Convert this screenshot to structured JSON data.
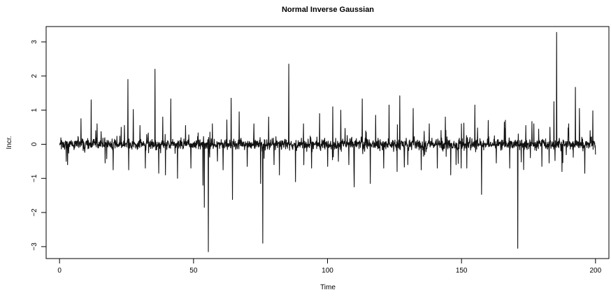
{
  "chart_data": {
    "type": "line",
    "title": "Normal Inverse Gaussian",
    "xlabel": "Time",
    "ylabel": "Incr.",
    "xlim": [
      -5,
      205
    ],
    "ylim": [
      -3.35,
      3.45
    ],
    "xticks": [
      0,
      50,
      100,
      150,
      200
    ],
    "yticks": [
      -3,
      -2,
      -1,
      0,
      1,
      2,
      3
    ],
    "grid": false,
    "legend": "none",
    "series": [
      {
        "n_points": 2000,
        "x_start": 0,
        "x_end": 200,
        "baseline_noise_sd": 0.08,
        "seed": 7,
        "spikes": [
          [
            2.5,
            -0.5
          ],
          [
            3.0,
            -0.6
          ],
          [
            8.0,
            0.75
          ],
          [
            11.8,
            1.3
          ],
          [
            14.0,
            0.6
          ],
          [
            17.0,
            -0.55
          ],
          [
            20.0,
            -0.75
          ],
          [
            23.0,
            0.5
          ],
          [
            25.5,
            1.9
          ],
          [
            25.8,
            -0.75
          ],
          [
            27.5,
            1.02
          ],
          [
            30.0,
            0.55
          ],
          [
            32.0,
            -0.7
          ],
          [
            35.6,
            2.2
          ],
          [
            37.0,
            -0.85
          ],
          [
            38.5,
            0.8
          ],
          [
            39.5,
            -0.9
          ],
          [
            41.5,
            1.33
          ],
          [
            44.0,
            -1.0
          ],
          [
            47.0,
            0.55
          ],
          [
            49.0,
            -0.7
          ],
          [
            53.5,
            -1.2
          ],
          [
            54.0,
            -1.85
          ],
          [
            55.5,
            -3.15
          ],
          [
            57.0,
            0.6
          ],
          [
            61.0,
            -0.75
          ],
          [
            64.0,
            1.35
          ],
          [
            64.5,
            -1.62
          ],
          [
            67.0,
            0.95
          ],
          [
            70.0,
            -0.65
          ],
          [
            72.5,
            0.6
          ],
          [
            75.0,
            -1.15
          ],
          [
            75.8,
            -2.9
          ],
          [
            78.0,
            0.8
          ],
          [
            80.0,
            -0.6
          ],
          [
            82.0,
            -0.9
          ],
          [
            85.5,
            2.35
          ],
          [
            88.0,
            -1.1
          ],
          [
            91.0,
            0.6
          ],
          [
            94.0,
            -0.7
          ],
          [
            97.0,
            0.9
          ],
          [
            100.0,
            -0.65
          ],
          [
            102.0,
            1.1
          ],
          [
            105.0,
            1.0
          ],
          [
            108.0,
            -0.6
          ],
          [
            110.0,
            -1.25
          ],
          [
            113.0,
            1.33
          ],
          [
            116.0,
            -1.15
          ],
          [
            118.0,
            0.85
          ],
          [
            121.0,
            -0.7
          ],
          [
            123.0,
            1.15
          ],
          [
            126.0,
            -0.8
          ],
          [
            127.0,
            1.42
          ],
          [
            130.0,
            -0.6
          ],
          [
            132.0,
            1.05
          ],
          [
            135.0,
            -0.75
          ],
          [
            138.0,
            0.6
          ],
          [
            141.0,
            -0.7
          ],
          [
            144.0,
            0.8
          ],
          [
            146.0,
            -0.9
          ],
          [
            148.0,
            -0.6
          ],
          [
            150.0,
            0.6
          ],
          [
            152.0,
            -0.7
          ],
          [
            155.0,
            1.15
          ],
          [
            157.5,
            -1.47
          ],
          [
            160.0,
            0.7
          ],
          [
            163.0,
            -0.55
          ],
          [
            166.0,
            0.65
          ],
          [
            168.0,
            -0.7
          ],
          [
            171.0,
            -3.05
          ],
          [
            174.0,
            0.55
          ],
          [
            177.0,
            0.6
          ],
          [
            180.0,
            -0.65
          ],
          [
            183.0,
            0.5
          ],
          [
            184.5,
            1.25
          ],
          [
            185.5,
            3.28
          ],
          [
            187.5,
            -0.8
          ],
          [
            190.0,
            0.6
          ],
          [
            192.5,
            1.67
          ],
          [
            194.0,
            1.05
          ],
          [
            196.0,
            -0.85
          ],
          [
            198.0,
            0.4
          ],
          [
            199.0,
            0.98
          ],
          [
            200.0,
            -0.3
          ]
        ]
      }
    ]
  }
}
